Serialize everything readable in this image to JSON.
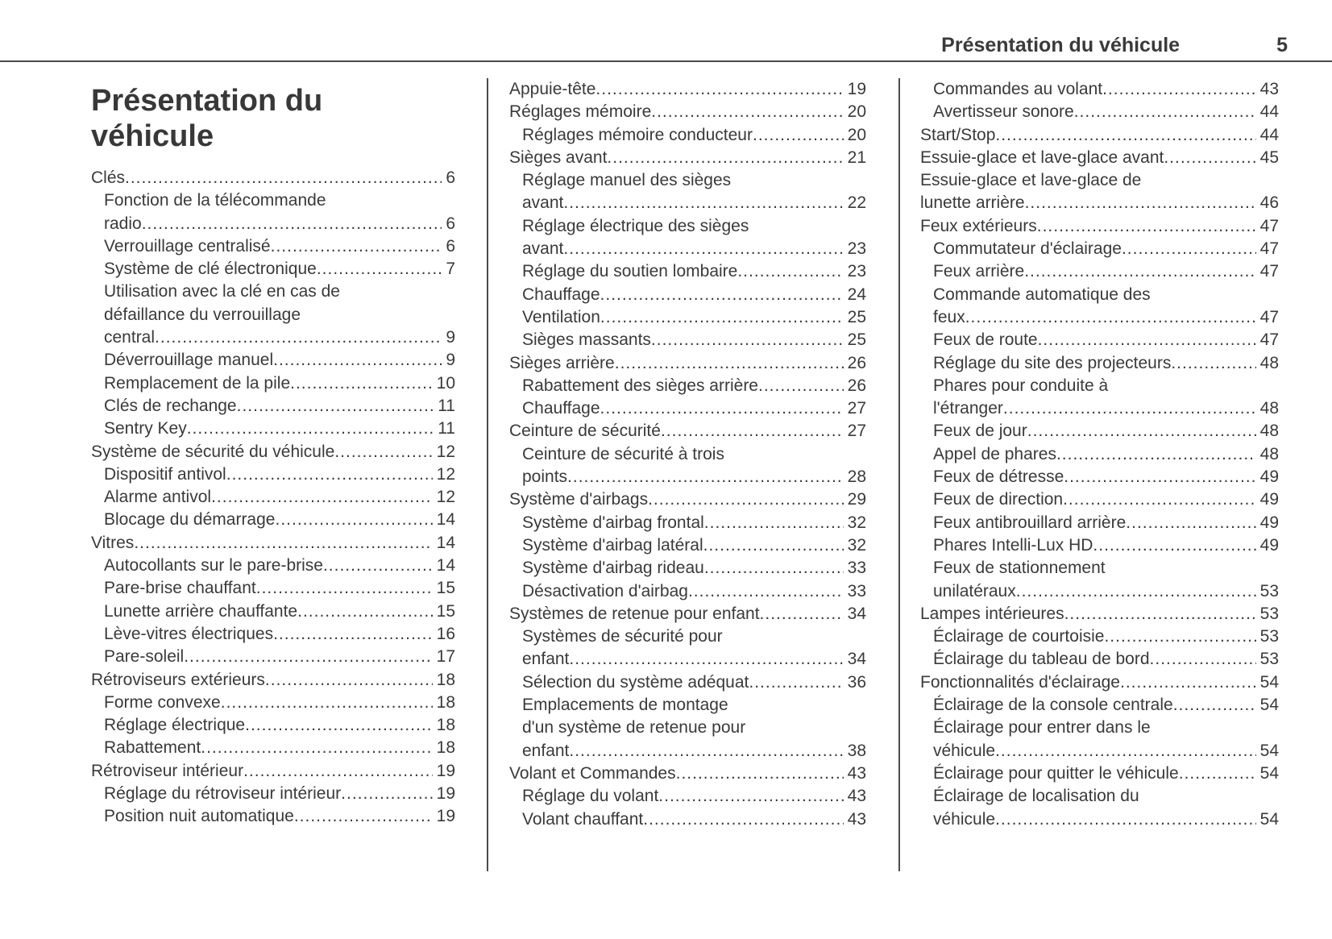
{
  "colors": {
    "ink": "#3a3a3a",
    "rule": "#4a4a4a"
  },
  "header": {
    "title": "Présentation du véhicule",
    "page": "5"
  },
  "main_title": "Présentation du véhicule",
  "columns": [
    [
      {
        "level": 1,
        "lines": [
          "Clés"
        ],
        "page": "6"
      },
      {
        "level": 2,
        "lines": [
          "Fonction de la télécommande",
          "radio"
        ],
        "page": "6"
      },
      {
        "level": 2,
        "lines": [
          "Verrouillage centralisé"
        ],
        "page": "6"
      },
      {
        "level": 2,
        "lines": [
          "Système de clé électronique"
        ],
        "page": "7"
      },
      {
        "level": 2,
        "lines": [
          "Utilisation avec la clé en cas de",
          "défaillance du verrouillage",
          "central"
        ],
        "page": "9"
      },
      {
        "level": 2,
        "lines": [
          "Déverrouillage manuel"
        ],
        "page": "9"
      },
      {
        "level": 2,
        "lines": [
          "Remplacement de la pile"
        ],
        "page": "10"
      },
      {
        "level": 2,
        "lines": [
          "Clés de rechange"
        ],
        "page": "11"
      },
      {
        "level": 2,
        "lines": [
          "Sentry Key"
        ],
        "page": "11"
      },
      {
        "level": 1,
        "lines": [
          "Système de sécurité du véhicule"
        ],
        "page": "12"
      },
      {
        "level": 2,
        "lines": [
          "Dispositif antivol"
        ],
        "page": "12"
      },
      {
        "level": 2,
        "lines": [
          "Alarme antivol"
        ],
        "page": "12"
      },
      {
        "level": 2,
        "lines": [
          "Blocage du démarrage"
        ],
        "page": "14"
      },
      {
        "level": 1,
        "lines": [
          "Vitres"
        ],
        "page": "14"
      },
      {
        "level": 2,
        "lines": [
          "Autocollants sur le pare-brise"
        ],
        "page": "14"
      },
      {
        "level": 2,
        "lines": [
          "Pare-brise chauffant"
        ],
        "page": "15"
      },
      {
        "level": 2,
        "lines": [
          "Lunette arrière chauffante"
        ],
        "page": "15"
      },
      {
        "level": 2,
        "lines": [
          "Lève-vitres électriques"
        ],
        "page": "16"
      },
      {
        "level": 2,
        "lines": [
          "Pare-soleil"
        ],
        "page": "17"
      },
      {
        "level": 1,
        "lines": [
          "Rétroviseurs extérieurs"
        ],
        "page": "18"
      },
      {
        "level": 2,
        "lines": [
          "Forme convexe"
        ],
        "page": "18"
      },
      {
        "level": 2,
        "lines": [
          "Réglage électrique"
        ],
        "page": "18"
      },
      {
        "level": 2,
        "lines": [
          "Rabattement"
        ],
        "page": "18"
      },
      {
        "level": 1,
        "lines": [
          "Rétroviseur intérieur"
        ],
        "page": "19"
      },
      {
        "level": 2,
        "lines": [
          "Réglage du rétroviseur intérieur"
        ],
        "page": "19"
      },
      {
        "level": 2,
        "lines": [
          "Position nuit automatique"
        ],
        "page": "19"
      }
    ],
    [
      {
        "level": 1,
        "lines": [
          "Appuie-tête"
        ],
        "page": "19"
      },
      {
        "level": 1,
        "lines": [
          "Réglages mémoire"
        ],
        "page": "20"
      },
      {
        "level": 2,
        "lines": [
          "Réglages mémoire conducteur"
        ],
        "page": "20"
      },
      {
        "level": 1,
        "lines": [
          "Sièges avant"
        ],
        "page": "21"
      },
      {
        "level": 2,
        "lines": [
          "Réglage manuel des sièges",
          "avant"
        ],
        "page": "22"
      },
      {
        "level": 2,
        "lines": [
          "Réglage électrique des sièges",
          "avant"
        ],
        "page": "23"
      },
      {
        "level": 2,
        "lines": [
          "Réglage du soutien lombaire"
        ],
        "page": "23"
      },
      {
        "level": 2,
        "lines": [
          "Chauffage"
        ],
        "page": "24"
      },
      {
        "level": 2,
        "lines": [
          "Ventilation"
        ],
        "page": "25"
      },
      {
        "level": 2,
        "lines": [
          "Sièges massants"
        ],
        "page": "25"
      },
      {
        "level": 1,
        "lines": [
          "Sièges arrière"
        ],
        "page": "26"
      },
      {
        "level": 2,
        "lines": [
          "Rabattement des sièges arrière"
        ],
        "page": "26"
      },
      {
        "level": 2,
        "lines": [
          "Chauffage"
        ],
        "page": "27"
      },
      {
        "level": 1,
        "lines": [
          "Ceinture de sécurité"
        ],
        "page": "27"
      },
      {
        "level": 2,
        "lines": [
          "Ceinture de sécurité à trois",
          "points"
        ],
        "page": "28"
      },
      {
        "level": 1,
        "lines": [
          "Système d'airbags"
        ],
        "page": "29"
      },
      {
        "level": 2,
        "lines": [
          "Système d'airbag frontal"
        ],
        "page": "32"
      },
      {
        "level": 2,
        "lines": [
          "Système d'airbag latéral"
        ],
        "page": "32"
      },
      {
        "level": 2,
        "lines": [
          "Système d'airbag rideau"
        ],
        "page": "33"
      },
      {
        "level": 2,
        "lines": [
          "Désactivation d'airbag"
        ],
        "page": "33"
      },
      {
        "level": 1,
        "lines": [
          "Systèmes de retenue pour enfant"
        ],
        "page": "34"
      },
      {
        "level": 2,
        "lines": [
          "Systèmes de sécurité pour",
          "enfant"
        ],
        "page": "34"
      },
      {
        "level": 2,
        "lines": [
          "Sélection du système adéquat"
        ],
        "page": "36"
      },
      {
        "level": 2,
        "lines": [
          "Emplacements de montage",
          "d'un système de retenue pour",
          "enfant"
        ],
        "page": "38"
      },
      {
        "level": 1,
        "lines": [
          "Volant et Commandes"
        ],
        "page": "43"
      },
      {
        "level": 2,
        "lines": [
          "Réglage du volant"
        ],
        "page": "43"
      },
      {
        "level": 2,
        "lines": [
          "Volant chauffant"
        ],
        "page": "43"
      }
    ],
    [
      {
        "level": 2,
        "lines": [
          "Commandes au volant"
        ],
        "page": "43"
      },
      {
        "level": 2,
        "lines": [
          "Avertisseur sonore"
        ],
        "page": "44"
      },
      {
        "level": 1,
        "lines": [
          "Start/Stop"
        ],
        "page": "44"
      },
      {
        "level": 1,
        "lines": [
          "Essuie-glace et lave-glace avant"
        ],
        "page": "45"
      },
      {
        "level": 1,
        "lines": [
          "Essuie-glace et lave-glace de",
          "lunette arrière"
        ],
        "page": "46"
      },
      {
        "level": 1,
        "lines": [
          "Feux extérieurs"
        ],
        "page": "47"
      },
      {
        "level": 2,
        "lines": [
          "Commutateur d'éclairage"
        ],
        "page": "47"
      },
      {
        "level": 2,
        "lines": [
          "Feux arrière"
        ],
        "page": "47"
      },
      {
        "level": 2,
        "lines": [
          "Commande automatique des",
          "feux"
        ],
        "page": "47"
      },
      {
        "level": 2,
        "lines": [
          "Feux de route"
        ],
        "page": "47"
      },
      {
        "level": 2,
        "lines": [
          "Réglage du site des projecteurs"
        ],
        "page": "48"
      },
      {
        "level": 2,
        "lines": [
          "Phares pour conduite à",
          "l'étranger"
        ],
        "page": "48"
      },
      {
        "level": 2,
        "lines": [
          "Feux de jour"
        ],
        "page": "48"
      },
      {
        "level": 2,
        "lines": [
          "Appel de phares"
        ],
        "page": "48"
      },
      {
        "level": 2,
        "lines": [
          "Feux de détresse"
        ],
        "page": "49"
      },
      {
        "level": 2,
        "lines": [
          "Feux de direction"
        ],
        "page": "49"
      },
      {
        "level": 2,
        "lines": [
          "Feux antibrouillard arrière"
        ],
        "page": "49"
      },
      {
        "level": 2,
        "lines": [
          "Phares Intelli-Lux HD"
        ],
        "page": "49"
      },
      {
        "level": 2,
        "lines": [
          "Feux de stationnement",
          "unilatéraux"
        ],
        "page": "53"
      },
      {
        "level": 1,
        "lines": [
          "Lampes intérieures"
        ],
        "page": "53"
      },
      {
        "level": 2,
        "lines": [
          "Éclairage de courtoisie"
        ],
        "page": "53"
      },
      {
        "level": 2,
        "lines": [
          "Éclairage du tableau de bord"
        ],
        "page": "53"
      },
      {
        "level": 1,
        "lines": [
          "Fonctionnalités d'éclairage"
        ],
        "page": "54"
      },
      {
        "level": 2,
        "lines": [
          "Éclairage de la console centrale"
        ],
        "page": "54"
      },
      {
        "level": 2,
        "lines": [
          "Éclairage pour entrer dans le",
          "véhicule"
        ],
        "page": "54"
      },
      {
        "level": 2,
        "lines": [
          "Éclairage pour quitter le véhicule"
        ],
        "page": "54"
      },
      {
        "level": 2,
        "lines": [
          "Éclairage de localisation du",
          "véhicule"
        ],
        "page": "54"
      }
    ]
  ]
}
